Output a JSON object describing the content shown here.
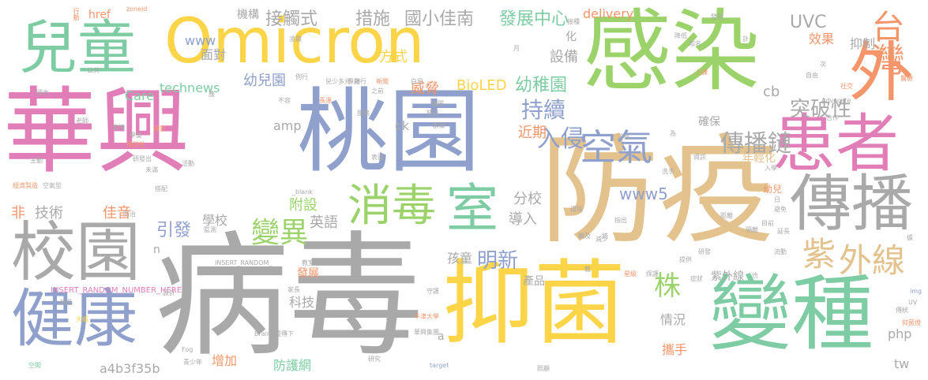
{
  "palette": {
    "pink": "#E17EB8",
    "gray": "#A9A9A9",
    "green": "#9BD36A",
    "yellow": "#FBD447",
    "teal": "#7DCCA3",
    "tan": "#E3C28E",
    "blue": "#8FA0CC",
    "orange": "#F4956A"
  },
  "words": [
    {
      "text": "華興",
      "color": "pink"
    },
    {
      "text": "病毒",
      "color": "gray"
    },
    {
      "text": "感染",
      "color": "green"
    },
    {
      "text": "防疫",
      "color": "tan"
    },
    {
      "text": "桃園",
      "color": "blue"
    },
    {
      "text": "Omicron",
      "color": "yellow"
    },
    {
      "text": "抑菌",
      "color": "yellow"
    },
    {
      "text": "變種",
      "color": "teal"
    },
    {
      "text": "兒童",
      "color": "teal"
    },
    {
      "text": "患者",
      "color": "pink"
    },
    {
      "text": "傳播",
      "color": "gray"
    },
    {
      "text": "校園",
      "color": "gray"
    },
    {
      "text": "健康",
      "color": "blue"
    },
    {
      "text": "室",
      "color": "teal"
    },
    {
      "text": "外",
      "color": "orange"
    },
    {
      "text": "空氣",
      "color": "blue"
    },
    {
      "text": "消毒",
      "color": "green"
    },
    {
      "text": "台灣",
      "color": "orange"
    },
    {
      "text": "紫",
      "color": "tan"
    },
    {
      "text": "外線",
      "color": "tan"
    },
    {
      "text": "入侵",
      "color": "blue"
    },
    {
      "text": "變異",
      "color": "green"
    },
    {
      "text": "傳播鏈",
      "color": "gray"
    },
    {
      "text": "突破性",
      "color": "gray"
    },
    {
      "text": "株",
      "color": "green"
    },
    {
      "text": "明新",
      "color": "blue"
    },
    {
      "text": "持續",
      "color": "blue"
    },
    {
      "text": "幼稚園",
      "color": "teal"
    },
    {
      "text": "發展中心",
      "color": "teal"
    },
    {
      "text": "國小佳南",
      "color": "gray"
    },
    {
      "text": "接觸式",
      "color": "gray"
    },
    {
      "text": "措施",
      "color": "gray"
    },
    {
      "text": "delivery",
      "color": "orange"
    },
    {
      "text": "UVC",
      "color": "gray"
    },
    {
      "text": "效果",
      "color": "orange"
    },
    {
      "text": "抑制",
      "color": "gray"
    },
    {
      "text": "www",
      "color": "blue"
    },
    {
      "text": "面對",
      "color": "gray"
    },
    {
      "text": "方式",
      "color": "yellow"
    },
    {
      "text": "設備",
      "color": "gray"
    },
    {
      "text": "technews",
      "color": "teal"
    },
    {
      "text": "幼兒園",
      "color": "blue"
    },
    {
      "text": "BioLED",
      "color": "yellow"
    },
    {
      "text": "威脅",
      "color": "orange"
    },
    {
      "text": "Care",
      "color": "teal"
    },
    {
      "text": "amp",
      "color": "gray"
    },
    {
      "text": "ck",
      "color": "gray"
    },
    {
      "text": "近期",
      "color": "orange"
    },
    {
      "text": "確保",
      "color": "gray"
    },
    {
      "text": "cb",
      "color": "gray"
    },
    {
      "text": "年輕化",
      "color": "tan"
    },
    {
      "text": "www5",
      "color": "blue"
    },
    {
      "text": "分校",
      "color": "gray"
    },
    {
      "text": "附設",
      "color": "green"
    },
    {
      "text": "導入",
      "color": "gray"
    },
    {
      "text": "英語",
      "color": "gray"
    },
    {
      "text": "技術",
      "color": "gray"
    },
    {
      "text": "佳音",
      "color": "orange"
    },
    {
      "text": "引發",
      "color": "blue"
    },
    {
      "text": "學校",
      "color": "gray"
    },
    {
      "text": "孩童",
      "color": "gray"
    },
    {
      "text": "情況",
      "color": "gray"
    },
    {
      "text": "科技",
      "color": "gray"
    },
    {
      "text": "攜手",
      "color": "orange"
    },
    {
      "text": "防護網",
      "color": "teal"
    },
    {
      "text": "增加",
      "color": "orange"
    },
    {
      "text": "產品",
      "color": "gray"
    },
    {
      "text": "紫外線",
      "color": "gray"
    },
    {
      "text": "php",
      "color": "gray"
    },
    {
      "text": "tw",
      "color": "gray"
    },
    {
      "text": "發展",
      "color": "orange"
    },
    {
      "text": "a4b3f35b",
      "color": "gray"
    },
    {
      "text": "幼兒",
      "color": "orange"
    },
    {
      "text": "非",
      "color": "orange"
    },
    {
      "text": "機構",
      "color": "gray"
    },
    {
      "text": "href",
      "color": "orange"
    },
    {
      "text": "n",
      "color": "gray"
    },
    {
      "text": "a",
      "color": "gray"
    },
    {
      "text": "化",
      "color": "gray"
    },
    {
      "text": "INSERT_RANDOM_NUMBER_HERE",
      "color": "pink"
    },
    {
      "text": "INSERT_RANDOM_",
      "color": "gray"
    },
    {
      "text": "Brain",
      "color": "gray"
    },
    {
      "text": "Fog",
      "color": "gray"
    },
    {
      "text": "_blank",
      "color": "gray"
    },
    {
      "text": "target",
      "color": "blue"
    },
    {
      "text": "zoneid",
      "color": "orange"
    },
    {
      "text": "Advocate",
      "color": "gray"
    },
    {
      "text": "UV",
      "color": "gray"
    },
    {
      "text": "img",
      "color": "blue"
    },
    {
      "text": "行動",
      "color": "orange"
    },
    {
      "text": "公共",
      "color": "gray"
    },
    {
      "text": "國內",
      "color": "gray"
    },
    {
      "text": "不容",
      "color": "gray"
    },
    {
      "text": "長達",
      "color": "orange"
    },
    {
      "text": "專用",
      "color": "gray"
    },
    {
      "text": "兒少",
      "color": "gray"
    },
    {
      "text": "優質",
      "color": "orange"
    },
    {
      "text": "研發出",
      "color": "gray"
    },
    {
      "text": "主動",
      "color": "gray"
    },
    {
      "text": "經濟製造",
      "color": "orange"
    },
    {
      "text": "空氣型",
      "color": "gray"
    },
    {
      "text": "搭配",
      "color": "gray"
    },
    {
      "text": "可防",
      "color": "gray"
    },
    {
      "text": "精品",
      "color": "gray"
    },
    {
      "text": "大幅",
      "color": "yellow"
    },
    {
      "text": "設計",
      "color": "gray"
    },
    {
      "text": "空間",
      "color": "teal"
    },
    {
      "text": "冷氣",
      "color": "gray"
    },
    {
      "text": "表面",
      "color": "gray"
    },
    {
      "text": "星級",
      "color": "orange"
    },
    {
      "text": "保護",
      "color": "gray"
    },
    {
      "text": "症狀",
      "color": "gray"
    },
    {
      "text": "醫療",
      "color": "orange"
    },
    {
      "text": "發現",
      "color": "gray"
    },
    {
      "text": "自由",
      "color": "gray"
    },
    {
      "text": "社交",
      "color": "orange"
    },
    {
      "text": "知名",
      "color": "gray"
    },
    {
      "text": "上課",
      "color": "orange"
    },
    {
      "text": "流動",
      "color": "gray"
    },
    {
      "text": "距離",
      "color": "gray"
    },
    {
      "text": "研發",
      "color": "gray"
    },
    {
      "text": "洗手",
      "color": "gray"
    },
    {
      "text": "傳統",
      "color": "gray"
    },
    {
      "text": "抑菌燈",
      "color": "orange"
    },
    {
      "text": "青少年",
      "color": "gray"
    },
    {
      "text": "研究",
      "color": "gray"
    },
    {
      "text": "華興集團",
      "color": "gray"
    },
    {
      "text": "雙重傳下",
      "color": "gray"
    },
    {
      "text": "教室",
      "color": "gray"
    },
    {
      "text": "牛津大學",
      "color": "orange"
    },
    {
      "text": "守護",
      "color": "gray"
    },
    {
      "text": "照顧",
      "color": "gray"
    },
    {
      "text": "環境",
      "color": "gray"
    },
    {
      "text": "觸及",
      "color": "gray"
    },
    {
      "text": "指出",
      "color": "gray"
    },
    {
      "text": "減少",
      "color": "gray"
    },
    {
      "text": "接種",
      "color": "gray"
    },
    {
      "text": "銀行",
      "color": "gray"
    },
    {
      "text": "新聞",
      "color": "orange"
    },
    {
      "text": "白目",
      "color": "gray"
    },
    {
      "text": "例行",
      "color": "gray"
    },
    {
      "text": "多元",
      "color": "gray"
    },
    {
      "text": "肺炎",
      "color": "gray"
    },
    {
      "text": "降低",
      "color": "gray"
    },
    {
      "text": "學童",
      "color": "gray"
    },
    {
      "text": "預防性",
      "color": "orange"
    },
    {
      "text": "活動",
      "color": "gray"
    },
    {
      "text": "未滿",
      "color": "gray"
    },
    {
      "text": "疫情",
      "color": "gray"
    },
    {
      "text": "之前",
      "color": "gray"
    },
    {
      "text": "監測",
      "color": "gray"
    },
    {
      "text": "家長",
      "color": "gray"
    },
    {
      "text": "防治",
      "color": "gray"
    },
    {
      "text": "服務",
      "color": "gray"
    },
    {
      "text": "期間",
      "color": "gray"
    },
    {
      "text": "群聚",
      "color": "gray"
    },
    {
      "text": "合作",
      "color": "gray"
    },
    {
      "text": "目前",
      "color": "gray"
    },
    {
      "text": "隔離",
      "color": "gray"
    },
    {
      "text": "避免",
      "color": "gray"
    },
    {
      "text": "提供",
      "color": "gray"
    },
    {
      "text": "老師",
      "color": "gray"
    },
    {
      "text": "日",
      "color": "gray"
    },
    {
      "text": "月",
      "color": "gray"
    },
    {
      "text": "計",
      "color": "gray"
    },
    {
      "text": "應",
      "color": "gray"
    },
    {
      "text": "也",
      "color": "gray"
    },
    {
      "text": "據",
      "color": "gray"
    },
    {
      "text": "次",
      "color": "gray"
    },
    {
      "text": "資訊",
      "color": "gray"
    },
    {
      "text": "入學",
      "color": "gray"
    },
    {
      "text": "延長",
      "color": "gray"
    },
    {
      "text": "戴",
      "color": "gray"
    },
    {
      "text": "將",
      "color": "gray"
    },
    {
      "text": "為",
      "color": "gray"
    },
    {
      "text": "凌晨",
      "color": "gray"
    },
    {
      "text": "病例",
      "color": "gray"
    }
  ]
}
